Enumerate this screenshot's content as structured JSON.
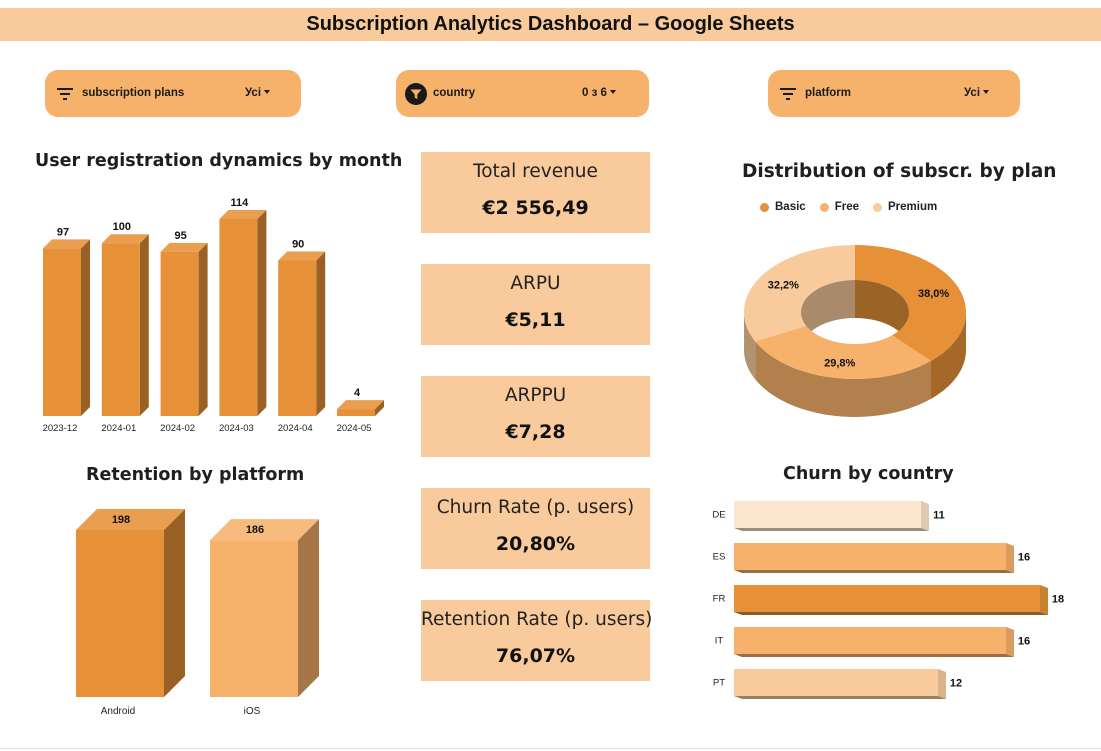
{
  "header": {
    "title": "Subscription Analytics Dashboard – Google Sheets"
  },
  "filters": [
    {
      "label": "subscription plans",
      "value": "Усі",
      "icon": "filter-lines-icon"
    },
    {
      "label": "country",
      "value": "0 з 6",
      "icon": "filter-funnel-active-icon"
    },
    {
      "label": "platform",
      "value": "Усі",
      "icon": "filter-lines-icon"
    }
  ],
  "colors": {
    "orange_dark": "#e69138",
    "orange_mid": "#f6b26b",
    "orange_light": "#f9cb9c",
    "orange_pale": "#fce5cd"
  },
  "kpis": [
    {
      "label": "Total revenue",
      "value": "€2 556,49"
    },
    {
      "label": "ARPU",
      "value": "€5,11"
    },
    {
      "label": "ARPPU",
      "value": "€7,28"
    },
    {
      "label": "Churn Rate (p. users)",
      "value": "20,80%"
    },
    {
      "label": "Retention Rate (p. users)",
      "value": "76,07%"
    }
  ],
  "chart_data": [
    {
      "id": "registrations",
      "type": "bar",
      "title": "User registration dynamics by month",
      "categories": [
        "2023-12",
        "2024-01",
        "2024-02",
        "2024-03",
        "2024-04",
        "2024-05"
      ],
      "values": [
        97,
        100,
        95,
        114,
        90,
        4
      ],
      "ylim": [
        0,
        114
      ],
      "grid": false,
      "style": "3d"
    },
    {
      "id": "retention",
      "type": "bar",
      "title": "Retention by platform",
      "categories": [
        "Android",
        "iOS"
      ],
      "values": [
        198,
        186
      ],
      "grid": false,
      "style": "3d"
    },
    {
      "id": "plan_distribution",
      "type": "pie",
      "title": "Distribution of subscr. by plan",
      "categories": [
        "Basic",
        "Free",
        "Premium"
      ],
      "values": [
        38.0,
        29.8,
        32.2
      ],
      "value_labels": [
        "38,0%",
        "29,8%",
        "32,2%"
      ],
      "legend_position": "top",
      "style": "3d-donut"
    },
    {
      "id": "churn_country",
      "type": "bar",
      "orientation": "horizontal",
      "title": "Churn by country",
      "categories": [
        "DE",
        "ES",
        "FR",
        "IT",
        "PT"
      ],
      "values": [
        11,
        16,
        18,
        16,
        12
      ],
      "grid": false,
      "style": "3d"
    }
  ]
}
